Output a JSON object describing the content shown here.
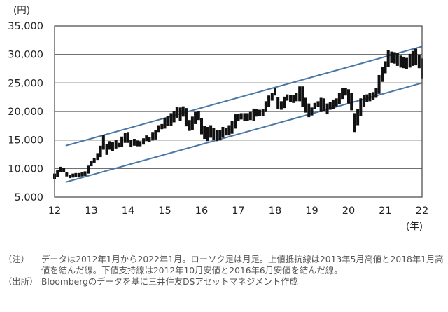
{
  "chart_data": {
    "type": "candlestick",
    "y_unit": "(円)",
    "x_unit": "(年)",
    "ylim": [
      5000,
      35000
    ],
    "xlim": [
      12,
      22
    ],
    "y_ticks": [
      "35,000",
      "30,000",
      "25,000",
      "20,000",
      "15,000",
      "10,000",
      "5,000"
    ],
    "y_tick_values": [
      35000,
      30000,
      25000,
      20000,
      15000,
      10000,
      5000
    ],
    "x_ticks": [
      "12",
      "13",
      "14",
      "15",
      "16",
      "17",
      "18",
      "19",
      "20",
      "21",
      "22"
    ],
    "x_tick_values": [
      12,
      13,
      14,
      15,
      16,
      17,
      18,
      19,
      20,
      21,
      22
    ],
    "grid": true,
    "series": [
      {
        "x": [
          12.0,
          12.08,
          12.17,
          12.25,
          12.33,
          12.42,
          12.5,
          12.58,
          12.67,
          12.75,
          12.83,
          12.92,
          13.0,
          13.08,
          13.17,
          13.25,
          13.33,
          13.42,
          13.5,
          13.58,
          13.67,
          13.75,
          13.83,
          13.92,
          14.0,
          14.08,
          14.17,
          14.25,
          14.33,
          14.42,
          14.5,
          14.58,
          14.67,
          14.75,
          14.83,
          14.92,
          15.0,
          15.08,
          15.17,
          15.25,
          15.33,
          15.42,
          15.5,
          15.58,
          15.67,
          15.75,
          15.83,
          15.92,
          16.0,
          16.08,
          16.17,
          16.25,
          16.33,
          16.42,
          16.5,
          16.58,
          16.67,
          16.75,
          16.83,
          16.92,
          17.0,
          17.08,
          17.17,
          17.25,
          17.33,
          17.42,
          17.5,
          17.58,
          17.67,
          17.75,
          17.83,
          17.92,
          18.0,
          18.08,
          18.17,
          18.25,
          18.33,
          18.42,
          18.5,
          18.58,
          18.67,
          18.75,
          18.83,
          18.92,
          19.0,
          19.08,
          19.17,
          19.25,
          19.33,
          19.42,
          19.5,
          19.58,
          19.67,
          19.75,
          19.83,
          19.92,
          20.0,
          20.08,
          20.17,
          20.25,
          20.33,
          20.42,
          20.5,
          20.58,
          20.67,
          20.75,
          20.83,
          20.92,
          21.0,
          21.08,
          21.17,
          21.25,
          21.33,
          21.42,
          21.5,
          21.58,
          21.67,
          21.75,
          21.83,
          21.92,
          22.0
        ],
        "high": [
          9100,
          9800,
          10300,
          10100,
          9300,
          8900,
          9100,
          9200,
          9200,
          9300,
          9500,
          10500,
          11400,
          11800,
          12700,
          14000,
          15900,
          14300,
          14800,
          14700,
          15000,
          14500,
          15600,
          16200,
          16400,
          15000,
          15200,
          14900,
          14800,
          15300,
          15800,
          15500,
          16400,
          16800,
          17600,
          17800,
          18800,
          19200,
          19700,
          20000,
          20800,
          20700,
          20900,
          20600,
          18500,
          19100,
          19900,
          20000,
          18800,
          17500,
          17300,
          17600,
          17100,
          16800,
          16800,
          17300,
          17100,
          17600,
          18300,
          19500,
          19600,
          19700,
          19700,
          19700,
          19900,
          20500,
          20400,
          20300,
          20400,
          21800,
          22800,
          23300,
          24100,
          22500,
          21800,
          22600,
          23000,
          22900,
          22900,
          23200,
          24400,
          24400,
          22400,
          21400,
          20700,
          21500,
          21800,
          22400,
          22300,
          21400,
          21700,
          22100,
          22300,
          23300,
          24100,
          24100,
          23900,
          23300,
          19700,
          20400,
          22300,
          22900,
          23000,
          23300,
          23400,
          24100,
          26400,
          27800,
          28800,
          30700,
          30500,
          30400,
          30200,
          29800,
          29600,
          29400,
          30100,
          30600,
          31000,
          29900,
          29300
        ],
        "low": [
          8200,
          8500,
          9300,
          9300,
          8600,
          8300,
          8400,
          8500,
          8500,
          8600,
          8700,
          9100,
          10400,
          10900,
          11500,
          12000,
          13300,
          12400,
          13300,
          13100,
          13500,
          13700,
          13800,
          14500,
          14500,
          13800,
          14000,
          13900,
          13900,
          14200,
          14800,
          14700,
          14900,
          15100,
          16400,
          16900,
          17000,
          17500,
          17500,
          18100,
          18900,
          18400,
          19100,
          17400,
          16600,
          16700,
          17800,
          18500,
          16000,
          15200,
          14800,
          15400,
          15000,
          14800,
          14900,
          15400,
          15800,
          15800,
          16100,
          17000,
          18300,
          18600,
          18300,
          18300,
          18500,
          18400,
          19100,
          19200,
          19200,
          19900,
          20800,
          21900,
          22800,
          20400,
          20300,
          20600,
          21900,
          21600,
          21500,
          21800,
          21800,
          20800,
          19800,
          19000,
          19300,
          20400,
          20800,
          19900,
          20000,
          19500,
          20300,
          20400,
          20900,
          21300,
          22200,
          22800,
          21400,
          20200,
          16400,
          17600,
          19200,
          20800,
          21600,
          21800,
          22000,
          22400,
          23100,
          25200,
          26700,
          27800,
          28500,
          28400,
          28000,
          27700,
          27600,
          27400,
          27700,
          28000,
          28100,
          27600,
          25800
        ]
      }
    ],
    "bands": [
      {
        "x": [
          12.3,
          22.0
        ],
        "y": [
          14000,
          31400
        ]
      },
      {
        "x": [
          12.3,
          22.0
        ],
        "y": [
          7600,
          25000
        ]
      }
    ],
    "band_color": "#4a78a5",
    "grid_color": "#707070",
    "frame_color": "#444444",
    "candle_color": "#111111"
  },
  "notes": [
    {
      "tag": "（注）",
      "text": "データは2012年1月から2022年1月。ローソク足は月足。上値抵抗線は2013年5月高値と2018年1月高値を結んだ線。下値支持線は2012年10月安値と2016年6月安値を結んだ線。"
    },
    {
      "tag": "（出所）",
      "text": "Bloombergのデータを基に三井住友DSアセットマネジメント作成"
    }
  ]
}
